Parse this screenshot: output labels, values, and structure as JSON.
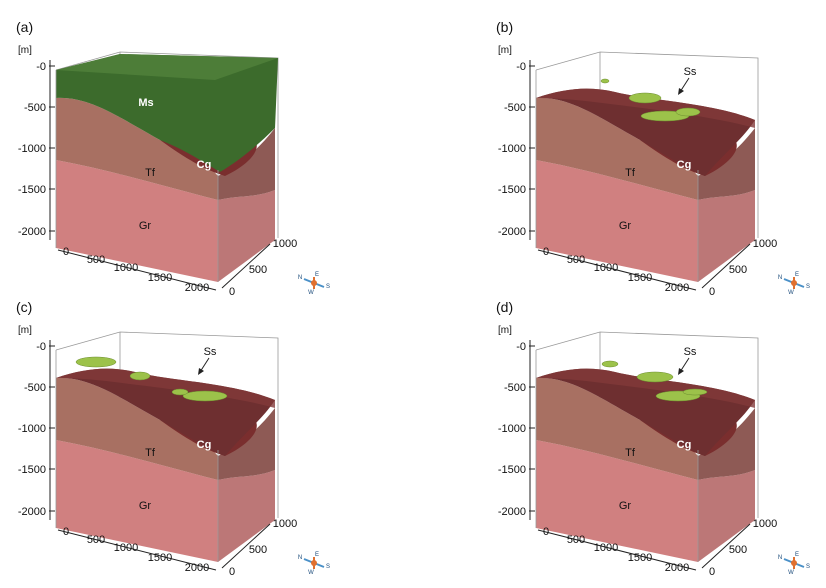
{
  "figure": {
    "panels": [
      {
        "label": "(a)",
        "show_ms": true,
        "show_ss": false,
        "ss_variant": 0
      },
      {
        "label": "(b)",
        "show_ms": false,
        "show_ss": true,
        "ss_variant": 1
      },
      {
        "label": "(c)",
        "show_ms": false,
        "show_ss": true,
        "ss_variant": 2
      },
      {
        "label": "(d)",
        "show_ms": false,
        "show_ss": true,
        "ss_variant": 3
      }
    ],
    "z_unit": "[m]",
    "z_ticks": [
      "-0",
      "-500",
      "-1000",
      "-1500",
      "-2000"
    ],
    "x_ticks": [
      "0",
      "500",
      "1000",
      "1500",
      "2000"
    ],
    "y_ticks": [
      "0",
      "500",
      "1000"
    ],
    "layers": {
      "ms": "Ms",
      "cg": "Cg",
      "tf": "Tf",
      "gr": "Gr",
      "ss": "Ss"
    },
    "compass": {
      "n": "N",
      "e": "E",
      "s": "S",
      "w": "W"
    },
    "colors": {
      "ms": "#3c6b2c",
      "cg": "#7a2e2e",
      "tf": "#a87062",
      "gr": "#d08080",
      "ss": "#9cc24a",
      "frame": "#999999"
    }
  }
}
